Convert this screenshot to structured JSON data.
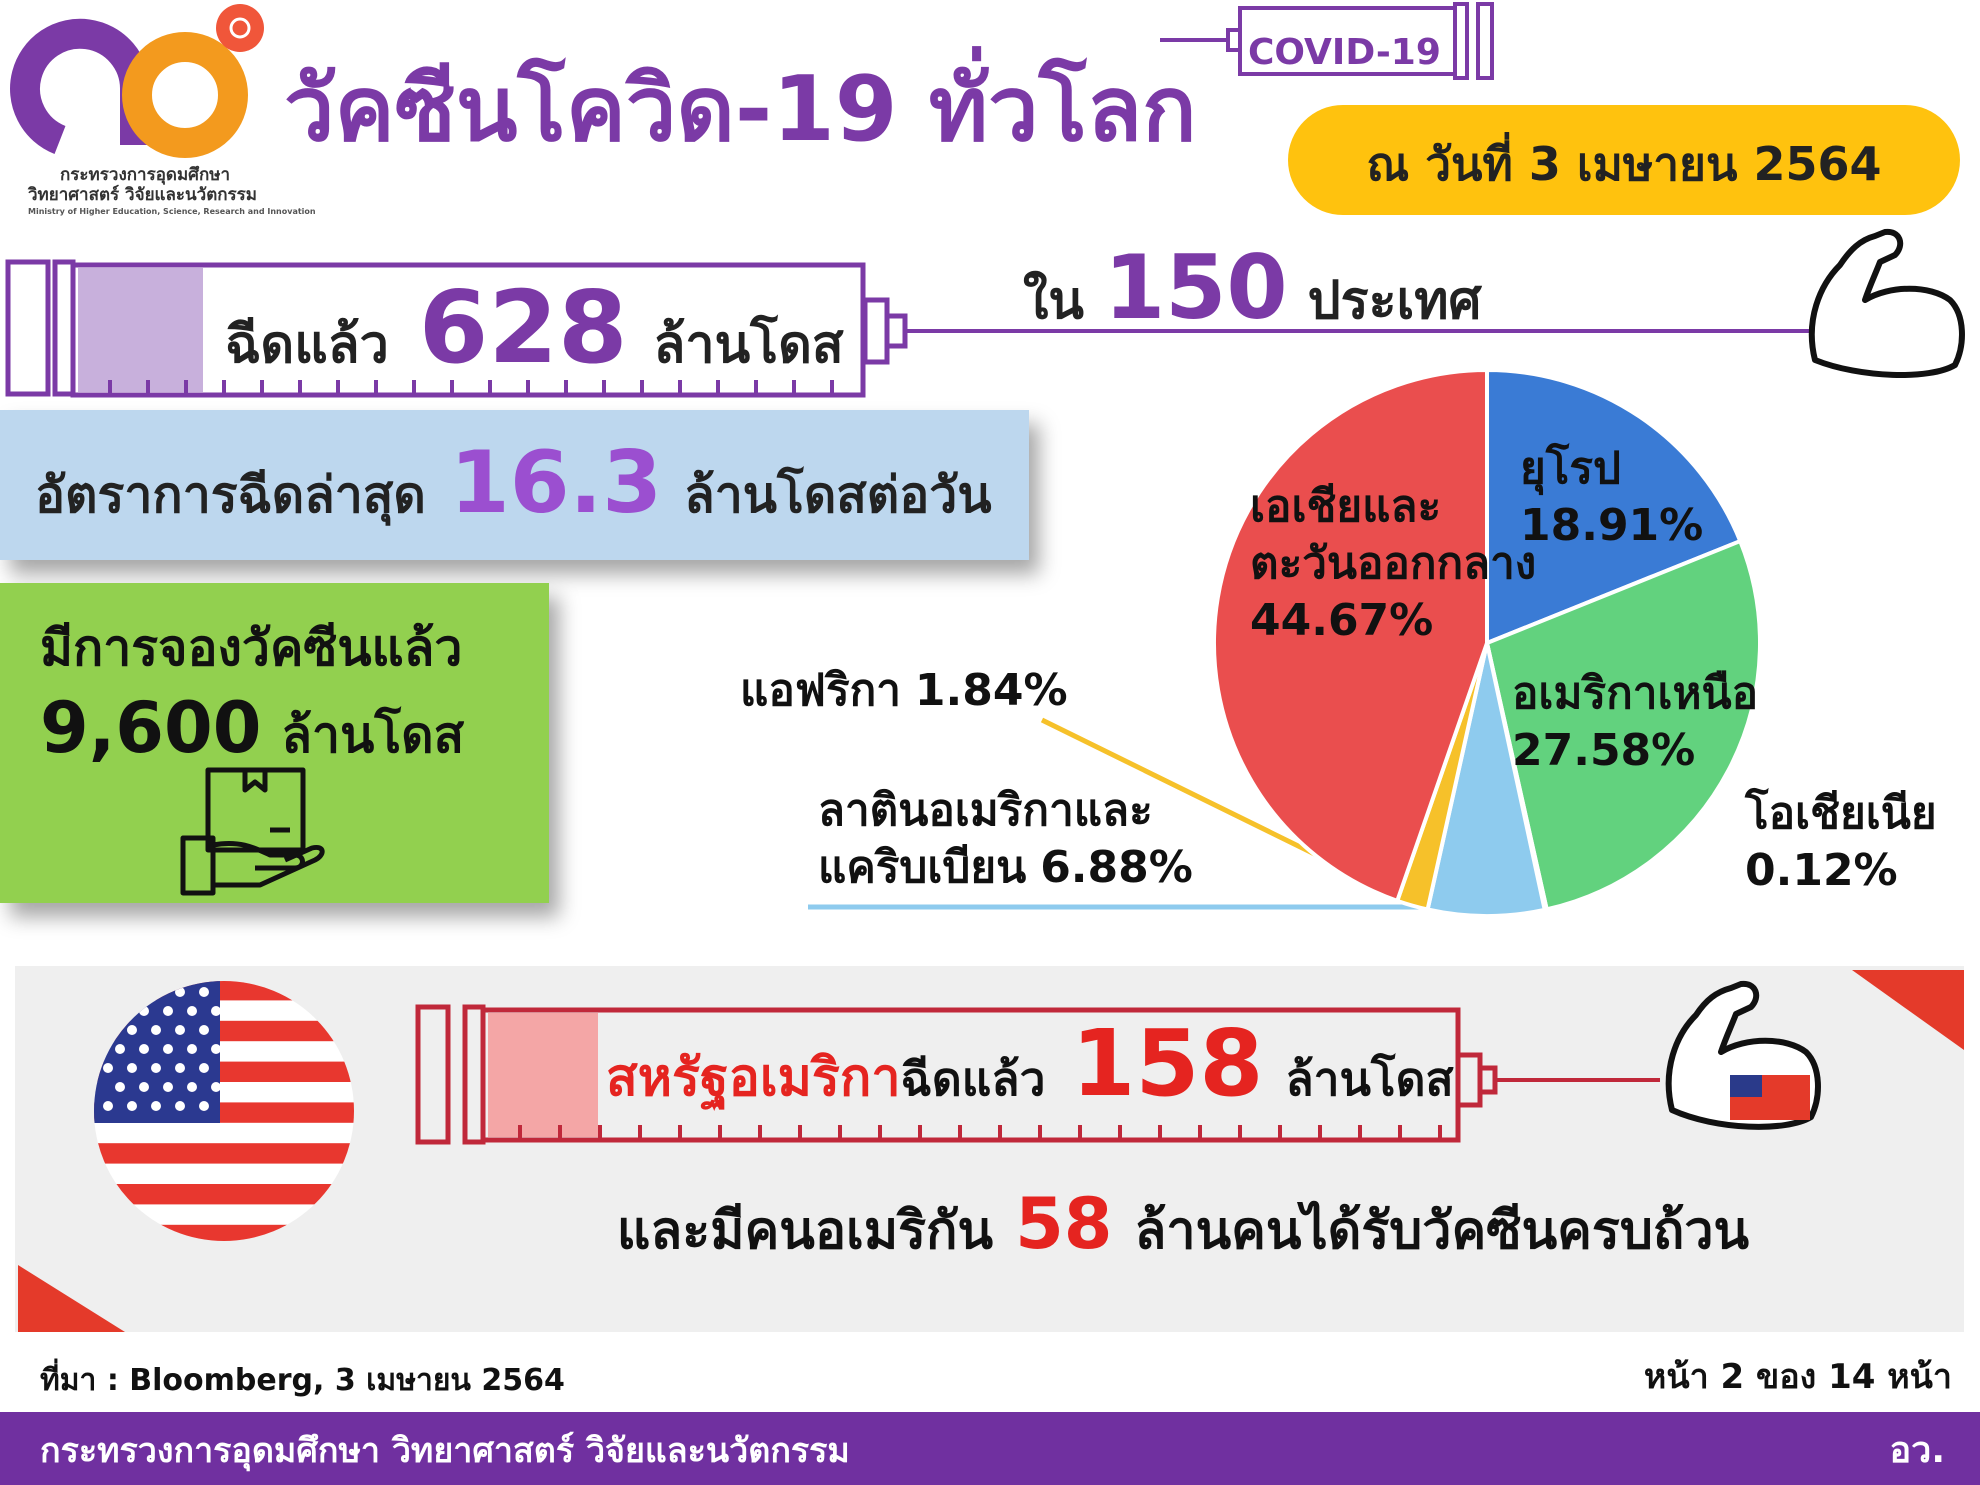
{
  "header": {
    "ministry_line1": "กระทรวงการอุดมศึกษา",
    "ministry_line2": "วิทยาศาสตร์ วิจัยและนวัตกรรม",
    "ministry_en": "Ministry of Higher Education, Science, Research and Innovation",
    "title": "วัคซีนโควิด-19 ทั่วโลก",
    "tag": "COVID-19",
    "date": "ณ วันที่ 3 เมษายน 2564"
  },
  "stats": {
    "doses_prefix": "ฉีดแล้ว",
    "doses": 628,
    "doses_unit": "ล้านโดส",
    "countries_prefix": "ใน",
    "countries": 150,
    "countries_unit": "ประเทศ",
    "rate_prefix": "อัตราการฉีดล่าสุด",
    "rate": 16.3,
    "rate_unit": "ล้านโดสต่อวัน",
    "booked_prefix": "มีการจองวัคซีนแล้ว",
    "booked": {
      "value": 9600,
      "label": "9,600"
    },
    "booked_unit": "ล้านโดส"
  },
  "chart_data": {
    "type": "pie",
    "categories": [
      "ยุโรป",
      "อเมริกาเหนือ",
      "โอเชียเนีย",
      "ลาตินอเมริกาและแคริบเบียน",
      "แอฟริกา",
      "เอเชียและตะวันออกกลาง"
    ],
    "values": [
      18.91,
      27.58,
      0.12,
      6.88,
      1.84,
      44.67
    ],
    "value_labels": [
      "18.91%",
      "27.58%",
      "0.12%",
      "6.88%",
      "1.84%",
      "44.67%"
    ],
    "colors": [
      "#3a7bd5",
      "#62d27e",
      "#d9d9d9",
      "#8ecbee",
      "#f6c12a",
      "#ea4e4e"
    ]
  },
  "usa": {
    "country": "สหรัฐอเมริกา",
    "doses_prefix": "ฉีดแล้ว",
    "doses": 158,
    "doses_unit": "ล้านโดส",
    "people_prefix": "และมีคนอเมริกัน",
    "people": 58,
    "people_unit": "ล้านคนได้รับวัคซีนครบถ้วน"
  },
  "footer": {
    "source": "ที่มา : Bloomberg, 3 เมษายน 2564",
    "page": "หน้า 2 ของ 14 หน้า",
    "ministry": "กระทรวงการอุดมศึกษา วิทยาศาสตร์ วิจัยและนวัตกรรม",
    "abbr": "อว."
  }
}
